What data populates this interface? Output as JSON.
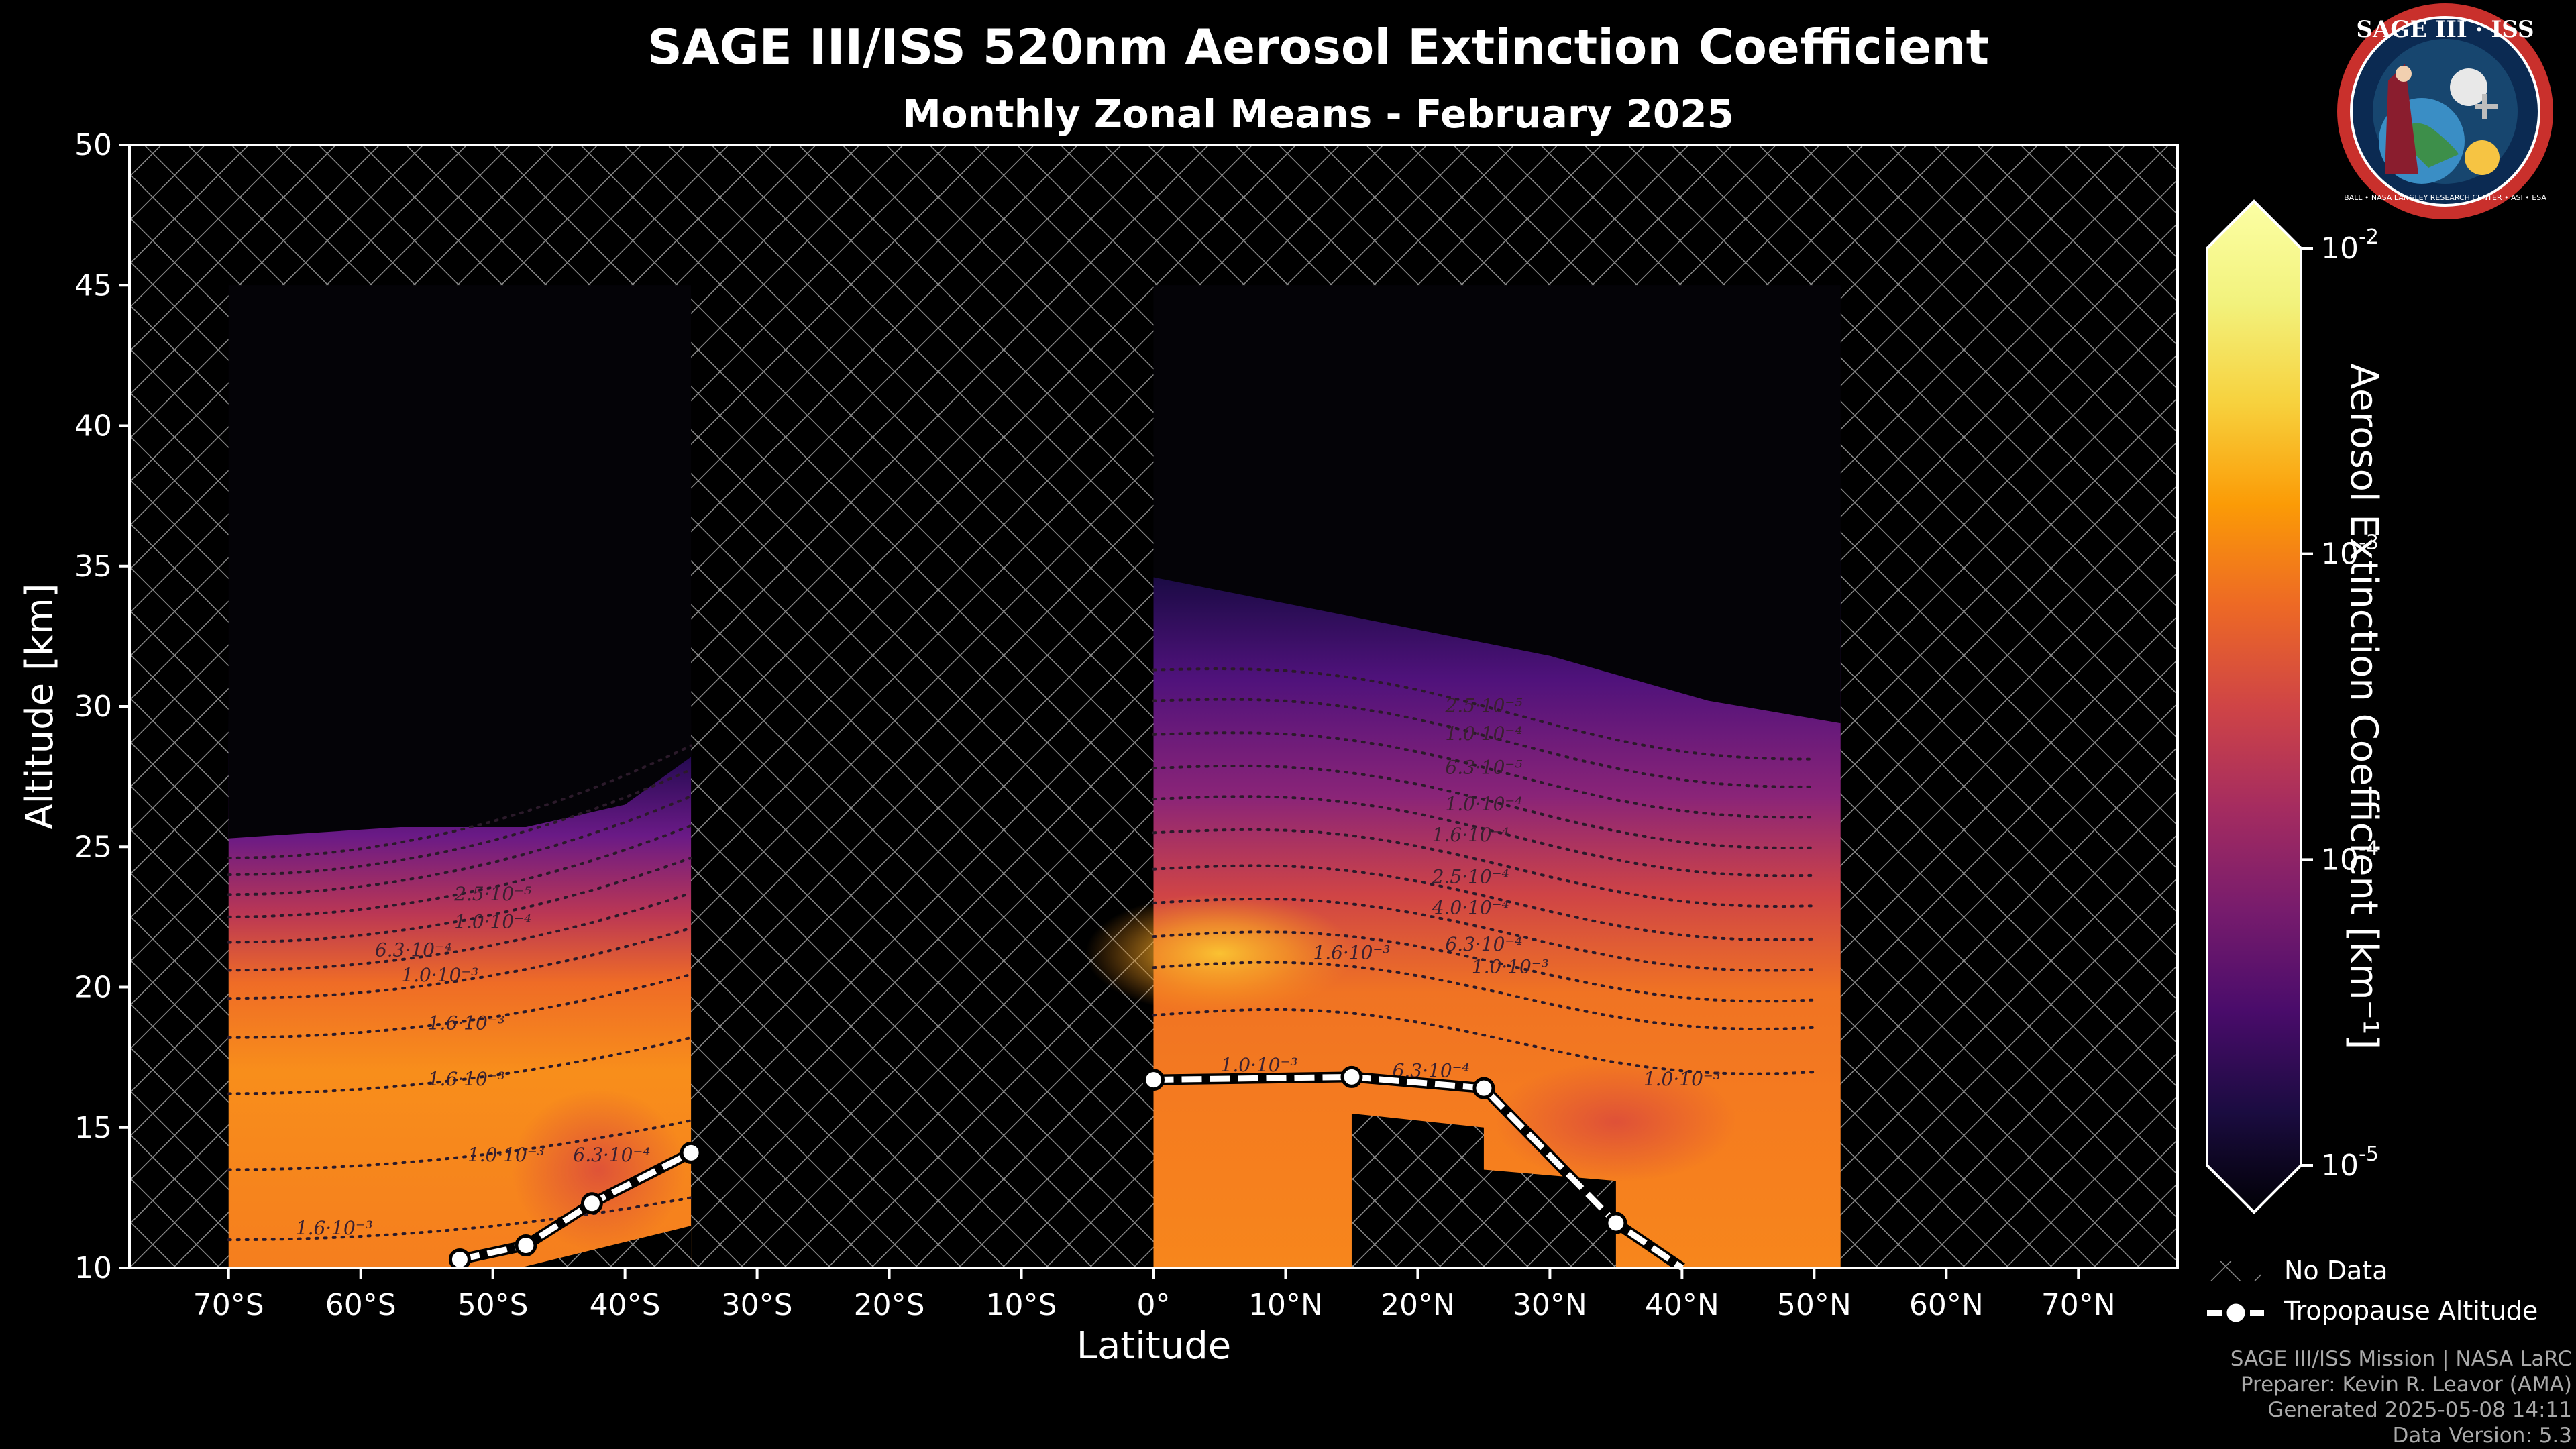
{
  "chart_data": {
    "type": "heatmap",
    "title": "SAGE III/ISS 520nm Aerosol Extinction Coefficient",
    "subtitle": "Monthly Zonal Means - February 2025",
    "xlabel": "Latitude",
    "ylabel": "Altitude [km]",
    "xlim": [
      -77.5,
      77.5
    ],
    "ylim": [
      10,
      50
    ],
    "x_ticks": [
      -70,
      -60,
      -50,
      -40,
      -30,
      -20,
      -10,
      0,
      10,
      20,
      30,
      40,
      50,
      60,
      70
    ],
    "x_tick_labels": [
      "70°S",
      "60°S",
      "50°S",
      "40°S",
      "30°S",
      "20°S",
      "10°S",
      "0°",
      "10°N",
      "20°N",
      "30°N",
      "40°N",
      "50°N",
      "60°N",
      "70°N"
    ],
    "y_ticks": [
      10,
      15,
      20,
      25,
      30,
      35,
      40,
      45,
      50
    ],
    "y_tick_labels": [
      "10",
      "15",
      "20",
      "25",
      "30",
      "35",
      "40",
      "45",
      "50"
    ],
    "colorbar": {
      "label": "Aerosol Extinction Coefficient [km⁻¹]",
      "scale": "log",
      "range": [
        1e-05,
        0.01
      ],
      "colormap": "inferno",
      "ticks": [
        {
          "value": 1e-05,
          "base": "10",
          "exp": "-5"
        },
        {
          "value": 0.0001,
          "base": "10",
          "exp": "-4"
        },
        {
          "value": 0.001,
          "base": "10",
          "exp": "-3"
        },
        {
          "value": 0.01,
          "base": "10",
          "exp": "-2"
        }
      ]
    },
    "data_regions": [
      {
        "lat_min": -70,
        "lat_max": -35,
        "top_altitude": 45
      },
      {
        "lat_min": 0,
        "lat_max": 52,
        "top_altitude": 45
      }
    ],
    "contour_labels": [
      {
        "text": "1.6·10⁻³",
        "lat": -62,
        "alt": 11.2
      },
      {
        "text": "1.0·10⁻³",
        "lat": -49,
        "alt": 13.8
      },
      {
        "text": "1.6·10⁻³",
        "lat": -52,
        "alt": 16.5
      },
      {
        "text": "1.6·10⁻³",
        "lat": -52,
        "alt": 18.5
      },
      {
        "text": "1.0·10⁻³",
        "lat": -54,
        "alt": 20.2
      },
      {
        "text": "6.3·10⁻⁴",
        "lat": -56,
        "alt": 21.1
      },
      {
        "text": "1.0·10⁻⁴",
        "lat": -50,
        "alt": 22.1
      },
      {
        "text": "2.5·10⁻⁵",
        "lat": -50,
        "alt": 23.1
      },
      {
        "text": "6.3·10⁻⁴",
        "lat": -41,
        "alt": 13.8
      },
      {
        "text": "1.6·10⁻³",
        "lat": 15,
        "alt": 21.0
      },
      {
        "text": "2.5·10⁻⁵",
        "lat": 25,
        "alt": 29.8
      },
      {
        "text": "1.0·10⁻⁴",
        "lat": 25,
        "alt": 28.8
      },
      {
        "text": "6.3·10⁻⁵",
        "lat": 25,
        "alt": 27.6
      },
      {
        "text": "1.0·10⁻⁴",
        "lat": 25,
        "alt": 26.3
      },
      {
        "text": "1.6·10⁻⁴",
        "lat": 24,
        "alt": 25.2
      },
      {
        "text": "2.5·10⁻⁴",
        "lat": 24,
        "alt": 23.7
      },
      {
        "text": "4.0·10⁻⁴",
        "lat": 24,
        "alt": 22.6
      },
      {
        "text": "6.3·10⁻⁴",
        "lat": 25,
        "alt": 21.3
      },
      {
        "text": "1.0·10⁻³",
        "lat": 27,
        "alt": 20.5
      },
      {
        "text": "1.0·10⁻³",
        "lat": 40,
        "alt": 16.5
      },
      {
        "text": "6.3·10⁻⁴",
        "lat": 21,
        "alt": 16.8
      },
      {
        "text": "1.0·10⁻³",
        "lat": 8,
        "alt": 17.0
      }
    ],
    "series": [
      {
        "name": "Tropopause Altitude",
        "x": [
          -52.5,
          -47.5,
          -42.5,
          -35,
          0,
          15,
          25,
          35,
          40
        ],
        "y": [
          10.3,
          10.8,
          12.3,
          14.1,
          16.7,
          16.8,
          16.4,
          11.6,
          10.0
        ]
      }
    ],
    "legend": {
      "placement": "bottom-right",
      "entries": [
        {
          "label": "No Data",
          "style": "hatched"
        },
        {
          "label": "Tropopause Altitude",
          "style": "dashed-line-with-markers"
        }
      ]
    },
    "colors": {
      "background": "#000000",
      "hatch": "#8a8a8a",
      "frame": "#ffffff",
      "tropopause": "#ffffff"
    }
  },
  "logo": {
    "top_text": "SAGE III · ISS",
    "bottom_text": "BALL • NASA LANGLEY RESEARCH CENTER • ASI • ESA"
  },
  "footer": {
    "line1": "SAGE III/ISS Mission | NASA LaRC",
    "line2": "Preparer: Kevin R. Leavor (AMA)",
    "line3": "Generated 2025-05-08 14:11",
    "line4": "Data Version: 5.3"
  }
}
